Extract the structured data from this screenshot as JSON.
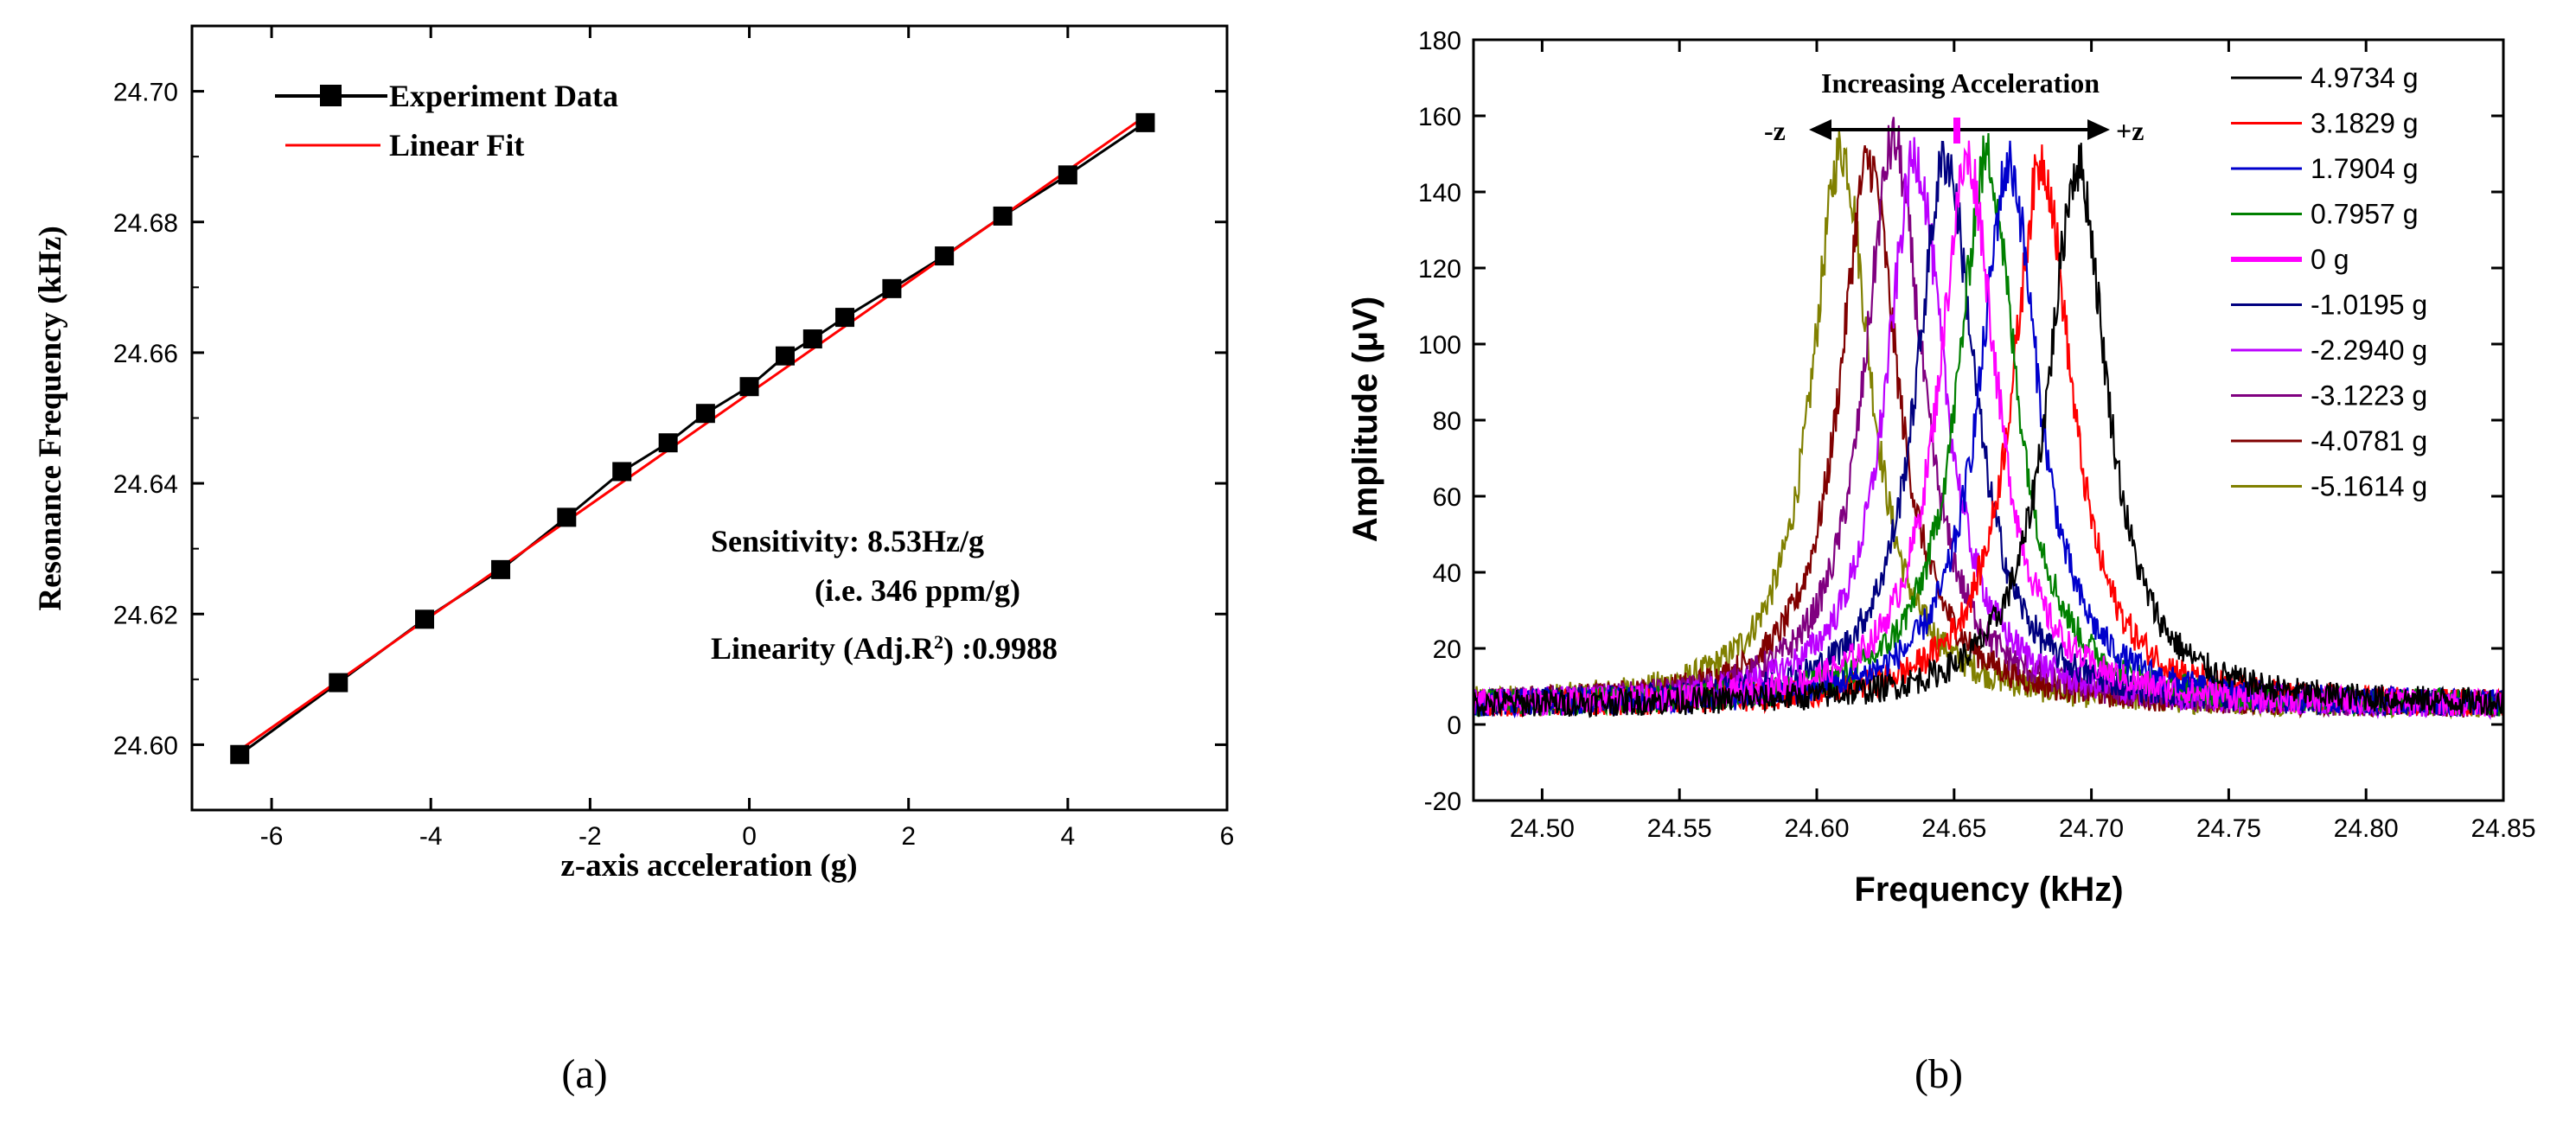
{
  "chart_data": [
    {
      "panel": "a",
      "type": "scatter",
      "caption": "(a)",
      "xlabel": "z-axis acceleration (g)",
      "ylabel": "Resonance Frequency (kHz)",
      "xlim": [
        -7,
        6
      ],
      "ylim": [
        24.59,
        24.71
      ],
      "xticks": [
        -6,
        -4,
        -2,
        0,
        2,
        4,
        6
      ],
      "yticks": [
        24.6,
        24.62,
        24.64,
        24.66,
        24.68,
        24.7
      ],
      "xtick_labels": [
        "-6",
        "-4",
        "-2",
        "0",
        "2",
        "4",
        "6"
      ],
      "ytick_labels": [
        "24.60",
        "24.62",
        "24.64",
        "24.66",
        "24.68",
        "24.70"
      ],
      "series": [
        {
          "name": "Experiment Data",
          "color": "#000000",
          "x": [
            -6.4,
            -5.1614,
            -4.0781,
            -3.1223,
            -2.294,
            -1.6,
            -1.0195,
            -0.55,
            0,
            0.45,
            0.7957,
            1.2,
            1.7904,
            2.45,
            3.1829,
            4.0,
            4.9734
          ],
          "y": [
            24.5985,
            24.6095,
            24.6192,
            24.6268,
            24.6348,
            24.6418,
            24.6462,
            24.6507,
            24.6548,
            24.6595,
            24.6621,
            24.6654,
            24.6698,
            24.6748,
            24.6809,
            24.6872,
            24.6952
          ]
        },
        {
          "name": "Linear Fit",
          "color": "#ff0000",
          "x": [
            -6.4,
            4.9734
          ],
          "y": [
            24.5992,
            24.6962
          ]
        }
      ],
      "annotations": {
        "sensitivity": "Sensitivity: 8.53Hz/g",
        "ppm": "(i.e. 346 ppm/g)",
        "linearity_prefix": "Linearity (Adj.R",
        "linearity_sup": "2",
        "linearity_suffix": ") :0.9988"
      }
    },
    {
      "panel": "b",
      "type": "line",
      "caption": "(b)",
      "xlabel": "Frequency (kHz)",
      "ylabel": "Amplitude (μV)",
      "xlim": [
        24.475,
        24.85
      ],
      "ylim": [
        -20,
        180
      ],
      "xticks": [
        24.5,
        24.55,
        24.6,
        24.65,
        24.7,
        24.75,
        24.8,
        24.85
      ],
      "yticks": [
        -20,
        0,
        20,
        40,
        60,
        80,
        100,
        120,
        140,
        160,
        180
      ],
      "xtick_labels": [
        "24.50",
        "24.55",
        "24.60",
        "24.65",
        "24.70",
        "24.75",
        "24.80",
        "24.85"
      ],
      "ytick_labels": [
        "-20",
        "0",
        "20",
        "40",
        "60",
        "80",
        "100",
        "120",
        "140",
        "160",
        "180"
      ],
      "series": [
        {
          "name": "4.9734 g",
          "color": "#000000",
          "peak_freq": 24.695,
          "peak_amp": 147
        },
        {
          "name": "3.1829 g",
          "color": "#ff0000",
          "peak_freq": 24.682,
          "peak_amp": 148
        },
        {
          "name": "1.7904 g",
          "color": "#0000cc",
          "peak_freq": 24.67,
          "peak_amp": 147
        },
        {
          "name": "0.7957 g",
          "color": "#008000",
          "peak_freq": 24.662,
          "peak_amp": 149
        },
        {
          "name": "0 g",
          "color": "#ff00ff",
          "peak_freq": 24.655,
          "peak_amp": 148
        },
        {
          "name": "-1.0195 g",
          "color": "#000080",
          "peak_freq": 24.647,
          "peak_amp": 149
        },
        {
          "name": "-2.2940 g",
          "color": "#bb00ff",
          "peak_freq": 24.636,
          "peak_amp": 149
        },
        {
          "name": "-3.1223 g",
          "color": "#800080",
          "peak_freq": 24.628,
          "peak_amp": 153
        },
        {
          "name": "-4.0781 g",
          "color": "#800000",
          "peak_freq": 24.619,
          "peak_amp": 148
        },
        {
          "name": "-5.1614 g",
          "color": "#808000",
          "peak_freq": 24.609,
          "peak_amp": 151
        }
      ],
      "annotations": {
        "arrow_title": "Increasing Acceleration",
        "left_label": "-z",
        "right_label": "+z"
      }
    }
  ]
}
